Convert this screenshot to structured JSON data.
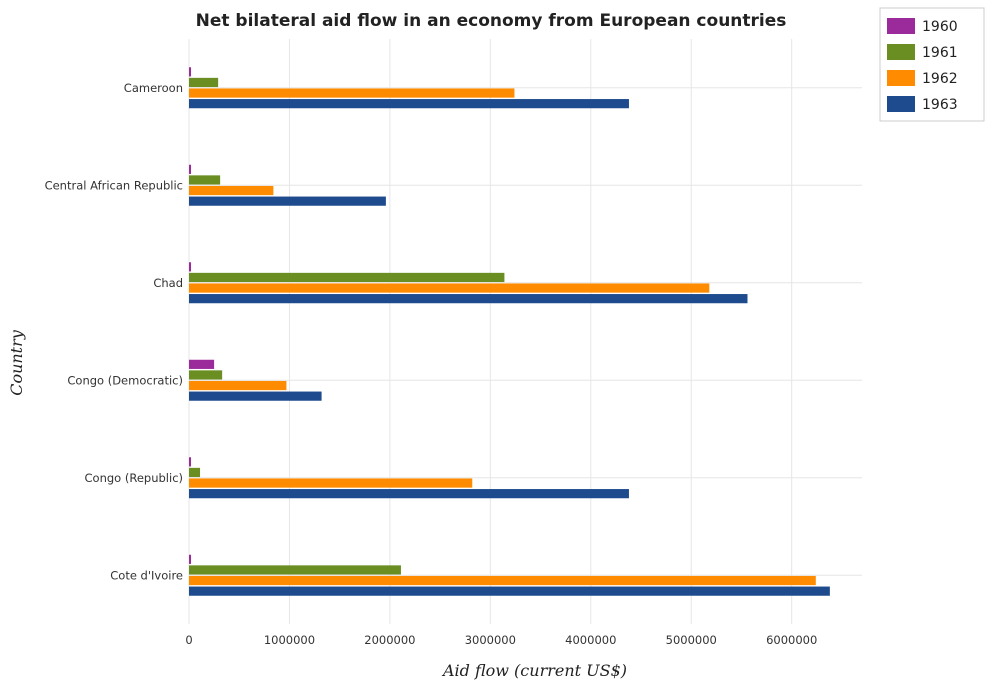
{
  "chart_data": {
    "type": "bar",
    "orientation": "horizontal",
    "title": "Net bilateral aid flow in an economy from European countries",
    "xlabel": "Aid flow (current US$)",
    "ylabel": "Country",
    "xlim": [
      0,
      6700000
    ],
    "xticks": [
      0,
      1000000,
      2000000,
      3000000,
      4000000,
      5000000,
      6000000
    ],
    "xtick_labels": [
      "0",
      "1000000",
      "2000000",
      "3000000",
      "4000000",
      "5000000",
      "6000000"
    ],
    "grid": true,
    "legend_position": "top-right",
    "categories": [
      "Cameroon",
      "Central African Republic",
      "Chad",
      "Congo (Democratic)",
      "Congo (Republic)",
      "Cote d'Ivoire"
    ],
    "series": [
      {
        "name": "1960",
        "color": "#9b2a9b",
        "values": [
          20000,
          20000,
          20000,
          250000,
          20000,
          20000
        ]
      },
      {
        "name": "1961",
        "color": "#6b8e23",
        "values": [
          290000,
          310000,
          3140000,
          330000,
          110000,
          2110000
        ]
      },
      {
        "name": "1962",
        "color": "#ff8c00",
        "values": [
          3240000,
          840000,
          5180000,
          970000,
          2820000,
          6240000
        ]
      },
      {
        "name": "1963",
        "color": "#1e4b8e",
        "values": [
          4380000,
          1960000,
          5560000,
          1320000,
          4380000,
          6380000
        ]
      }
    ]
  }
}
